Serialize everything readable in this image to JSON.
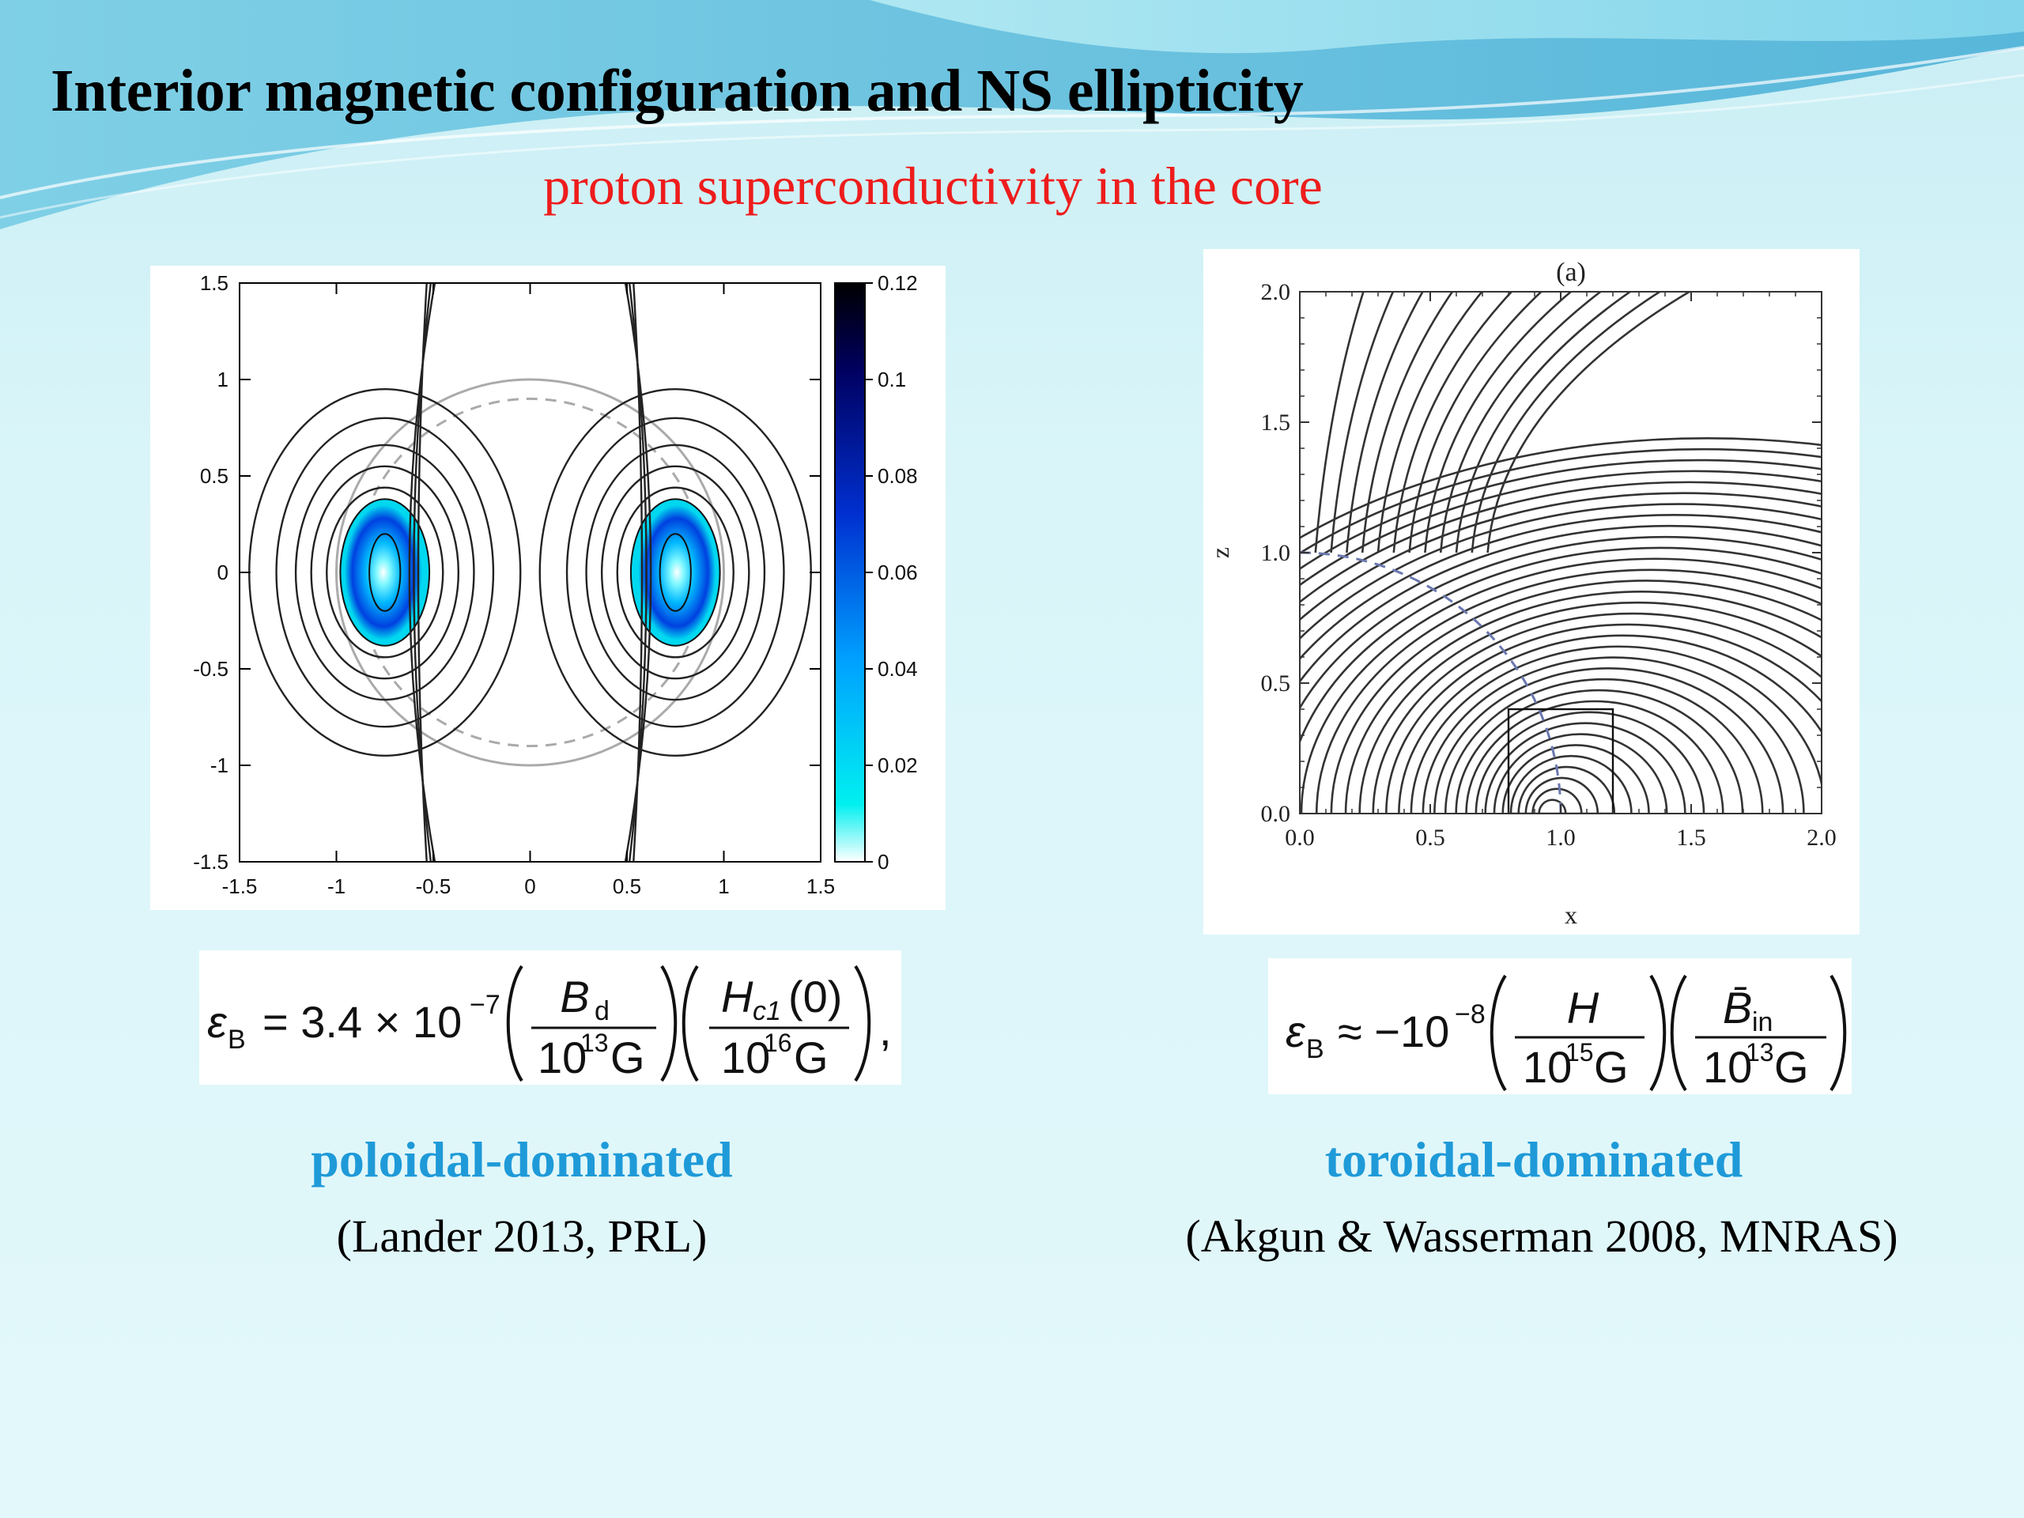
{
  "slide": {
    "title": "Interior magnetic configuration and NS ellipticity",
    "subtitle": "proton superconductivity in the core"
  },
  "left": {
    "label": "poloidal-dominated",
    "citation": "(Lander 2013, PRL)",
    "formula": {
      "lhs": "ε",
      "lhs_sub": "B",
      "relation": "= 3.4 × 10",
      "exponent": "−7",
      "frac1_num": "B",
      "frac1_num_sub": "d",
      "frac1_den": "10",
      "frac1_den_exp": "13",
      "frac1_den_unit": " G",
      "frac2_num": "H",
      "frac2_num_sub": "c1",
      "frac2_num_arg": "(0)",
      "frac2_den": "10",
      "frac2_den_exp": "16",
      "frac2_den_unit": " G",
      "trailing": ","
    },
    "chart_data": {
      "type": "contour",
      "x_ticks": [
        "-1.5",
        "-1",
        "-0.5",
        "0",
        "0.5",
        "1",
        "1.5"
      ],
      "y_ticks": [
        "1.5",
        "1",
        "0.5",
        "0",
        "-0.5",
        "-1",
        "-1.5"
      ],
      "xlim": [
        -1.5,
        1.5
      ],
      "ylim": [
        -1.5,
        1.5
      ],
      "colorbar_ticks": [
        "0.12",
        "0.1",
        "0.08",
        "0.06",
        "0.04",
        "0.02",
        "0"
      ],
      "colorbar_range": [
        0,
        0.12
      ],
      "colormap": [
        "#ffffff",
        "#00f0f0",
        "#00a0ff",
        "#0030d0",
        "#000060",
        "#000000"
      ]
    }
  },
  "right": {
    "label": "toroidal-dominated",
    "citation": "(Akgun & Wasserman 2008, MNRAS)",
    "formula": {
      "lhs": "ε",
      "lhs_sub": "B",
      "relation": "≈ −10",
      "exponent": "−8",
      "frac1_num": "H",
      "frac1_den": "10",
      "frac1_den_exp": "15",
      "frac1_den_unit": " G",
      "frac2_num": "B̄",
      "frac2_num_sub": "in",
      "frac2_den": "10",
      "frac2_den_exp": "13",
      "frac2_den_unit": " G"
    },
    "chart_data": {
      "type": "line",
      "title": "(a)",
      "xlabel": "x",
      "ylabel": "z",
      "x_ticks": [
        "0.0",
        "0.5",
        "1.0",
        "1.5",
        "2.0"
      ],
      "y_ticks": [
        "2.0",
        "1.5",
        "1.0",
        "0.5",
        "0.0"
      ],
      "xlim": [
        0,
        2
      ],
      "ylim": [
        0,
        2
      ],
      "surface_radius": 1.0,
      "inset_box": {
        "x": [
          0.8,
          1.2
        ],
        "z": [
          0,
          0.4
        ]
      }
    }
  }
}
